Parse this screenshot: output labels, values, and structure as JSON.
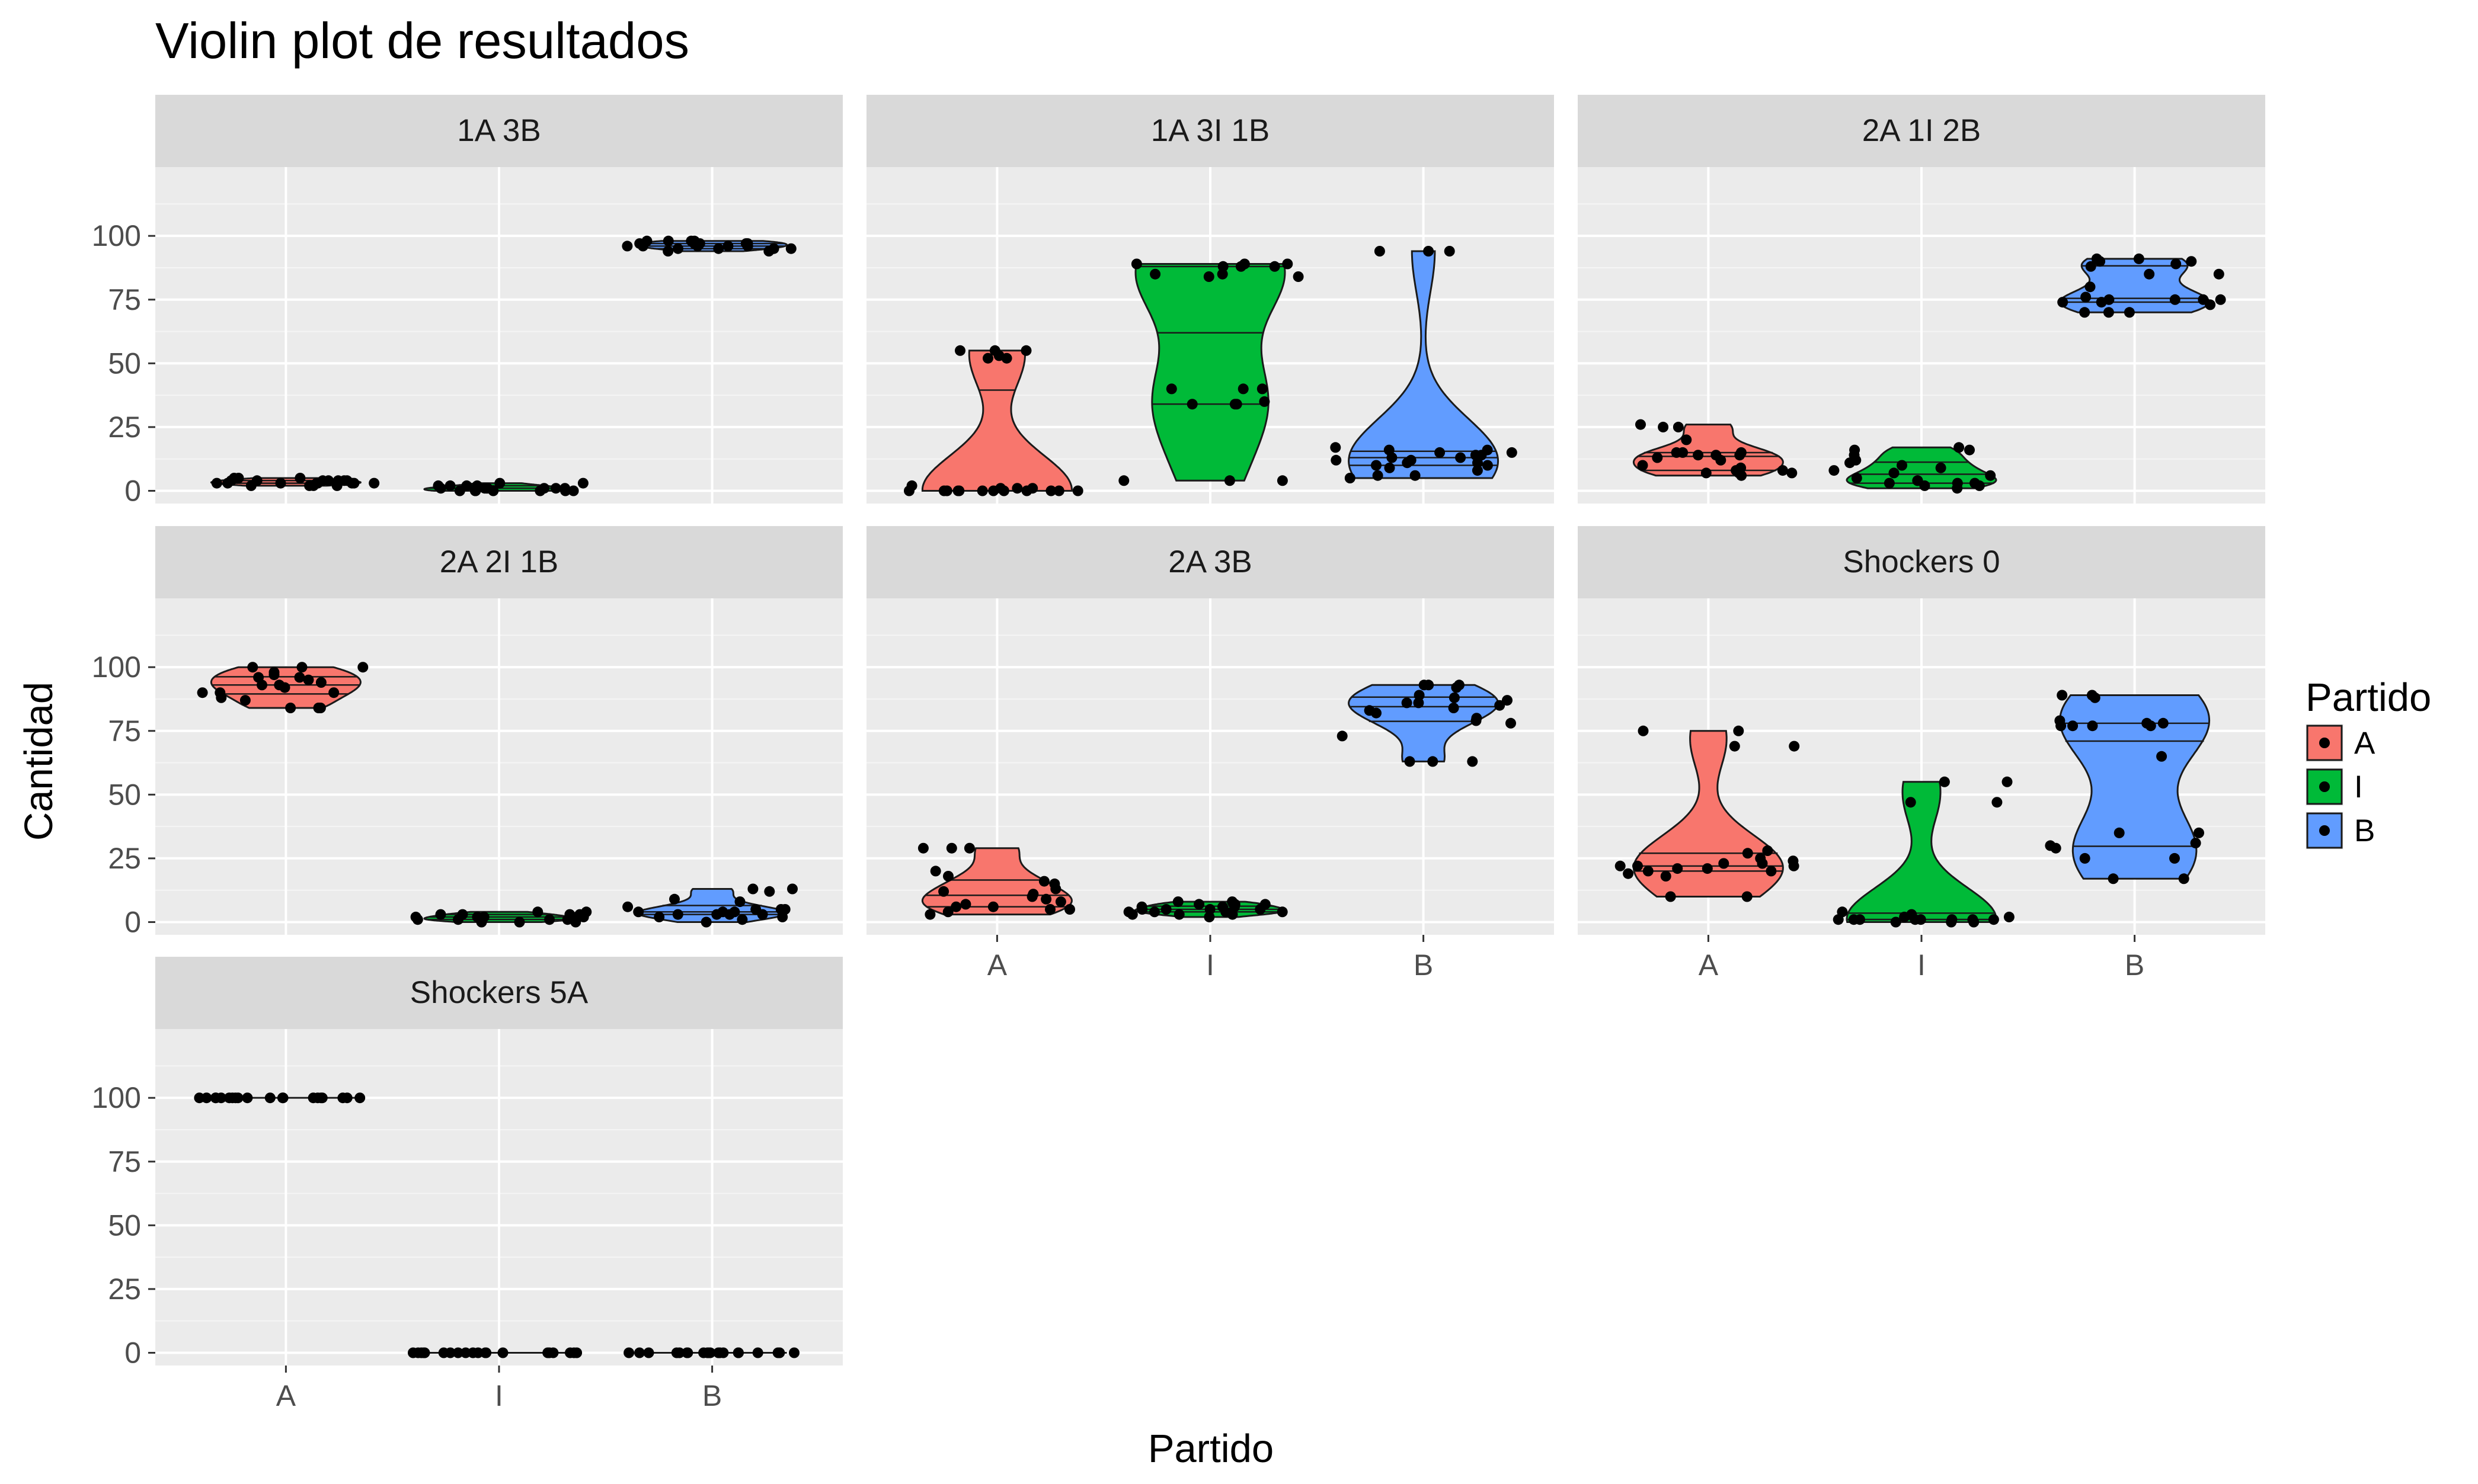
{
  "chart_data": {
    "type": "violin",
    "title": "Violin plot de resultados",
    "xlabel": "Partido",
    "ylabel": "Cantidad",
    "categories": [
      "A",
      "I",
      "B"
    ],
    "ylim": [
      -5,
      127
    ],
    "yticks": [
      0,
      25,
      50,
      75,
      100
    ],
    "grid": true,
    "legend": {
      "title": "Partido",
      "placement": "right",
      "entries": [
        {
          "label": "A",
          "color": "#F8766D"
        },
        {
          "label": "I",
          "color": "#00BA38"
        },
        {
          "label": "B",
          "color": "#619CFF"
        }
      ]
    },
    "facets": [
      {
        "label": "1A 3B",
        "groups": [
          {
            "category": "A",
            "values": [
              2,
              2,
              2,
              3,
              3,
              3,
              3,
              3,
              4,
              4,
              4,
              4,
              4,
              4,
              5,
              5,
              5,
              2,
              3,
              4,
              3,
              3
            ]
          },
          {
            "category": "I",
            "values": [
              0,
              0,
              0,
              0,
              0,
              1,
              1,
              1,
              1,
              1,
              2,
              2,
              2,
              3,
              3,
              0,
              1,
              2,
              1,
              0
            ]
          },
          {
            "category": "B",
            "values": [
              94,
              95,
              95,
              95,
              96,
              96,
              96,
              97,
              97,
              97,
              97,
              98,
              98,
              98,
              96,
              95,
              97,
              96,
              94,
              98
            ]
          }
        ]
      },
      {
        "label": "1A 3I 1B",
        "groups": [
          {
            "category": "A",
            "values": [
              0,
              0,
              0,
              0,
              0,
              0,
              0,
              0,
              0,
              0,
              1,
              1,
              2,
              52,
              52,
              53,
              55,
              55,
              55,
              0,
              0,
              1
            ]
          },
          {
            "category": "I",
            "values": [
              4,
              4,
              4,
              34,
              34,
              34,
              35,
              40,
              40,
              40,
              84,
              84,
              85,
              85,
              88,
              88,
              88,
              89,
              89,
              89
            ]
          },
          {
            "category": "B",
            "values": [
              5,
              6,
              6,
              8,
              9,
              10,
              10,
              11,
              11,
              12,
              12,
              13,
              13,
              14,
              14,
              15,
              15,
              16,
              16,
              17,
              94,
              94,
              94
            ]
          }
        ]
      },
      {
        "label": "2A 1I 2B",
        "groups": [
          {
            "category": "A",
            "values": [
              6,
              7,
              7,
              8,
              8,
              9,
              10,
              12,
              13,
              14,
              14,
              15,
              15,
              15,
              20,
              25,
              25,
              26,
              14,
              7
            ]
          },
          {
            "category": "I",
            "values": [
              1,
              2,
              2,
              3,
              3,
              4,
              4,
              5,
              6,
              7,
              8,
              9,
              10,
              11,
              12,
              14,
              16,
              16,
              17,
              3
            ]
          },
          {
            "category": "B",
            "values": [
              70,
              70,
              70,
              73,
              74,
              74,
              75,
              75,
              75,
              76,
              80,
              85,
              85,
              88,
              89,
              90,
              90,
              91,
              91,
              75
            ]
          }
        ]
      },
      {
        "label": "2A 2I 1B",
        "groups": [
          {
            "category": "A",
            "values": [
              84,
              84,
              84,
              87,
              88,
              90,
              90,
              90,
              92,
              93,
              93,
              94,
              95,
              96,
              96,
              97,
              98,
              100,
              100,
              100
            ]
          },
          {
            "category": "I",
            "values": [
              0,
              0,
              0,
              1,
              1,
              1,
              1,
              1,
              2,
              2,
              2,
              2,
              2,
              3,
              3,
              3,
              3,
              4,
              4,
              1
            ]
          },
          {
            "category": "B",
            "values": [
              0,
              1,
              2,
              3,
              3,
              3,
              4,
              4,
              4,
              5,
              5,
              6,
              8,
              9,
              12,
              13,
              13,
              3,
              5,
              2
            ]
          }
        ]
      },
      {
        "label": "2A 3B",
        "groups": [
          {
            "category": "A",
            "values": [
              3,
              4,
              5,
              5,
              6,
              7,
              8,
              9,
              10,
              11,
              12,
              13,
              15,
              16,
              18,
              20,
              29,
              29,
              29,
              6
            ]
          },
          {
            "category": "I",
            "values": [
              2,
              3,
              3,
              3,
              4,
              4,
              4,
              5,
              5,
              5,
              6,
              6,
              6,
              7,
              7,
              7,
              8,
              8,
              5,
              4
            ]
          },
          {
            "category": "B",
            "values": [
              63,
              63,
              63,
              73,
              78,
              79,
              80,
              82,
              83,
              84,
              85,
              86,
              86,
              87,
              88,
              89,
              92,
              93,
              93,
              93
            ]
          }
        ]
      },
      {
        "label": "Shockers 0",
        "groups": [
          {
            "category": "A",
            "values": [
              10,
              10,
              18,
              19,
              20,
              20,
              21,
              21,
              22,
              22,
              22,
              23,
              23,
              24,
              25,
              27,
              28,
              69,
              69,
              75,
              75
            ]
          },
          {
            "category": "I",
            "values": [
              0,
              0,
              0,
              1,
              1,
              1,
              1,
              1,
              1,
              1,
              2,
              2,
              3,
              4,
              47,
              47,
              55,
              55,
              1
            ]
          },
          {
            "category": "B",
            "values": [
              17,
              17,
              25,
              25,
              29,
              30,
              31,
              35,
              35,
              65,
              77,
              77,
              77,
              77,
              78,
              78,
              79,
              88,
              89,
              89
            ]
          }
        ]
      },
      {
        "label": "Shockers 5A",
        "groups": [
          {
            "category": "A",
            "values": [
              100,
              100,
              100,
              100,
              100,
              100,
              100,
              100,
              100,
              100,
              100,
              100,
              100,
              100,
              100,
              100,
              100,
              100,
              100,
              100
            ]
          },
          {
            "category": "I",
            "values": [
              0,
              0,
              0,
              0,
              0,
              0,
              0,
              0,
              0,
              0,
              0,
              0,
              0,
              0,
              0,
              0,
              0,
              0,
              0,
              0
            ]
          },
          {
            "category": "B",
            "values": [
              0,
              0,
              0,
              0,
              0,
              0,
              0,
              0,
              0,
              0,
              0,
              0,
              0,
              0,
              0,
              0,
              0,
              0,
              0,
              0
            ]
          }
        ]
      }
    ]
  }
}
